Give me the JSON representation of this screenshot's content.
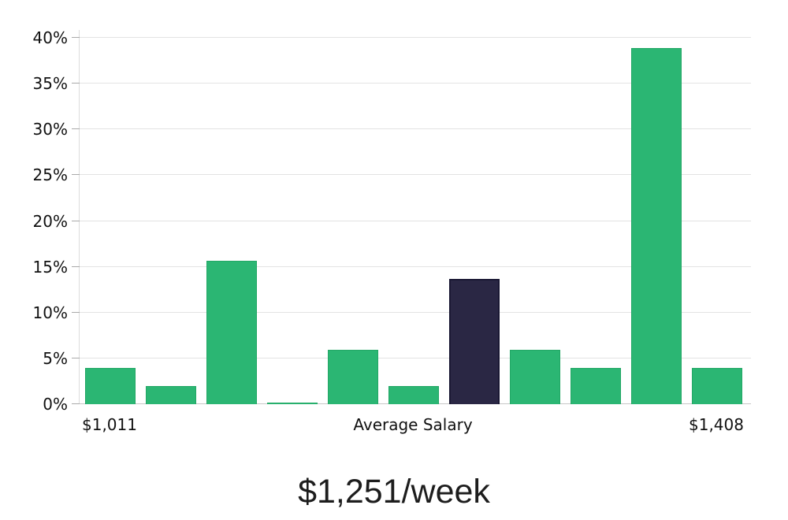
{
  "chart_data": {
    "type": "bar",
    "title": "$1,251/week",
    "xlabel": "",
    "ylabel": "",
    "ylim": [
      0,
      40
    ],
    "grid": true,
    "legend": null,
    "y_ticks": [
      "0%",
      "5%",
      "10%",
      "15%",
      "20%",
      "25%",
      "30%",
      "35%",
      "40%"
    ],
    "y_tick_values": [
      0,
      5,
      10,
      15,
      20,
      25,
      30,
      35,
      40
    ],
    "values": [
      4,
      2,
      15.7,
      0.2,
      5.9,
      2,
      13.7,
      5.9,
      4,
      38.9,
      4
    ],
    "highlight_index": 6,
    "x_axis_labels": [
      {
        "label": "$1,011",
        "bar_index": 0
      },
      {
        "label": "Average Salary",
        "bar_index": 5
      },
      {
        "label": "$1,408",
        "bar_index": 10
      }
    ],
    "colors": {
      "bar": "#2bb673",
      "bar_border": "#22a765",
      "highlight": "#2a2744",
      "highlight_border": "#1a1833",
      "gridline": "#e3e3e3",
      "baseline": "#c7c7c7",
      "tick": "#aaaaaa",
      "axis": "#dcdcdc",
      "text": "#111111"
    }
  }
}
